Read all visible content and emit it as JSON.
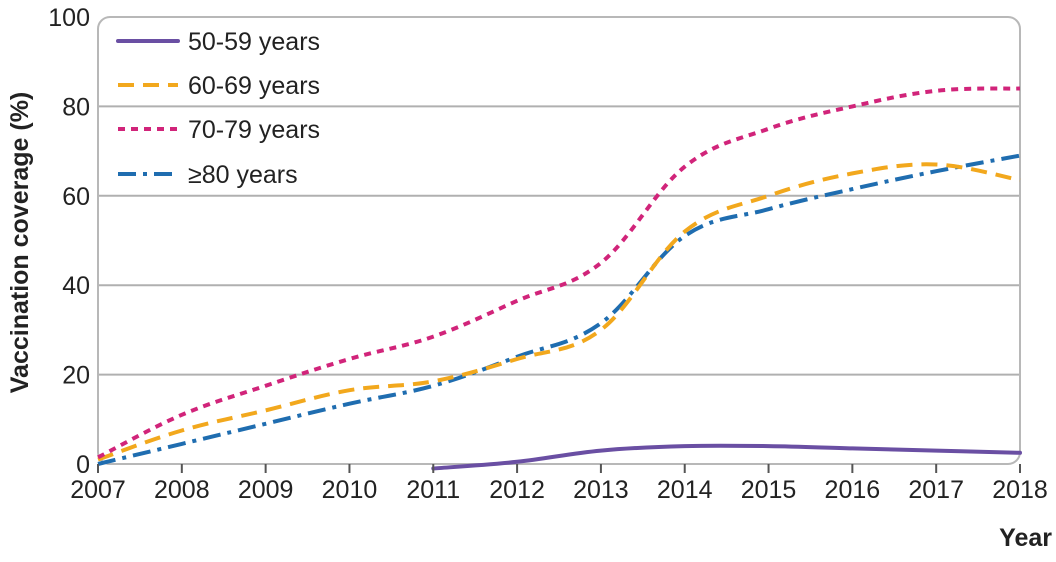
{
  "chart_data": {
    "type": "line",
    "title": "",
    "xlabel": "Year",
    "ylabel": "Vaccination coverage (%)",
    "ylim": [
      0,
      100
    ],
    "yticks": [
      0,
      20,
      40,
      60,
      80,
      100
    ],
    "x": [
      2007,
      2008,
      2009,
      2010,
      2011,
      2012,
      2013,
      2014,
      2015,
      2016,
      2017,
      2018
    ],
    "x_tick_labels": [
      "2007",
      "2008",
      "2009",
      "2010",
      "2011",
      "2012",
      "2013",
      "2014",
      "2015",
      "2016",
      "2017",
      "2018"
    ],
    "y_tick_labels": [
      "0",
      "20",
      "40",
      "60",
      "80",
      "100"
    ],
    "grid": "horizontal",
    "legend_position": "top-left",
    "series": [
      {
        "name": "50-59 years",
        "color": "#6a4fa3",
        "style": "solid",
        "x": [
          2011,
          2012,
          2013,
          2014,
          2015,
          2016,
          2017,
          2018
        ],
        "values": [
          -1,
          0.5,
          3,
          4,
          4,
          3.5,
          3,
          2.5
        ]
      },
      {
        "name": "60-69 years",
        "color": "#f2a81d",
        "style": "dashed",
        "x": [
          2007,
          2008,
          2009,
          2010,
          2011,
          2012,
          2013,
          2014,
          2015,
          2016,
          2017,
          2018
        ],
        "values": [
          1,
          7.5,
          12,
          16.5,
          18.5,
          23.5,
          30,
          52,
          60,
          65,
          67,
          63.5
        ]
      },
      {
        "name": "70-79 years",
        "color": "#d1247a",
        "style": "dotted",
        "x": [
          2007,
          2008,
          2009,
          2010,
          2011,
          2012,
          2013,
          2014,
          2015,
          2016,
          2017,
          2018
        ],
        "values": [
          1.5,
          11,
          17.5,
          23.5,
          28.5,
          36.5,
          45,
          66.5,
          75,
          80,
          83.5,
          84
        ]
      },
      {
        "name": "≥80 years",
        "color": "#1f6db0",
        "style": "dashdot",
        "x": [
          2007,
          2008,
          2009,
          2010,
          2011,
          2012,
          2013,
          2014,
          2015,
          2016,
          2017,
          2018
        ],
        "values": [
          0,
          4.5,
          9,
          13.5,
          17.5,
          24,
          31.5,
          51,
          57,
          61.5,
          65.5,
          69
        ]
      }
    ]
  }
}
